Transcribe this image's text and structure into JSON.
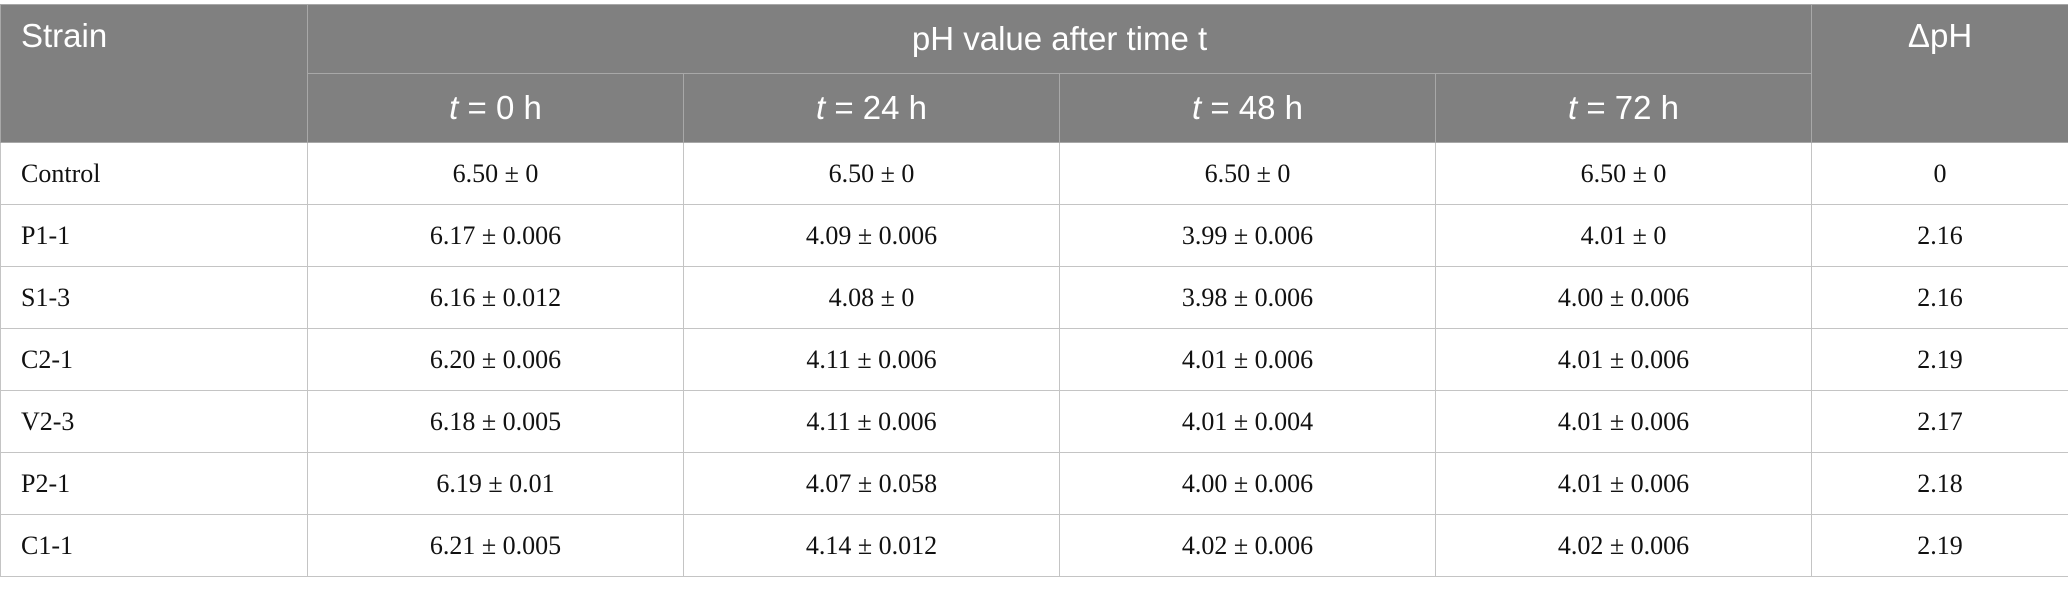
{
  "table": {
    "header": {
      "strain": "Strain",
      "group": "pH value after time t",
      "delta": "ΔpH"
    },
    "subheaders": [
      {
        "var": "t",
        "text": "= 0 h"
      },
      {
        "var": "t",
        "text": "= 24 h"
      },
      {
        "var": "t",
        "text": "= 48 h"
      },
      {
        "var": "t",
        "text": "= 72 h"
      }
    ],
    "rows": [
      [
        "Control",
        "6.50 ± 0",
        "6.50 ± 0",
        "6.50 ± 0",
        "6.50 ± 0",
        "0"
      ],
      [
        "P1-1",
        "6.17 ± 0.006",
        "4.09 ± 0.006",
        "3.99 ± 0.006",
        "4.01 ± 0",
        "2.16"
      ],
      [
        "S1-3",
        "6.16 ± 0.012",
        "4.08 ± 0",
        "3.98 ± 0.006",
        "4.00 ± 0.006",
        "2.16"
      ],
      [
        "C2-1",
        "6.20 ± 0.006",
        "4.11 ± 0.006",
        "4.01 ± 0.006",
        "4.01 ± 0.006",
        "2.19"
      ],
      [
        "V2-3",
        "6.18 ± 0.005",
        "4.11 ± 0.006",
        "4.01 ± 0.004",
        "4.01 ± 0.006",
        "2.17"
      ],
      [
        "P2-1",
        "6.19 ± 0.01",
        "4.07 ± 0.058",
        "4.00 ± 0.006",
        "4.01 ± 0.006",
        "2.18"
      ],
      [
        "C1-1",
        "6.21 ± 0.005",
        "4.14 ± 0.012",
        "4.02 ± 0.006",
        "4.02 ± 0.006",
        "2.19"
      ]
    ]
  }
}
